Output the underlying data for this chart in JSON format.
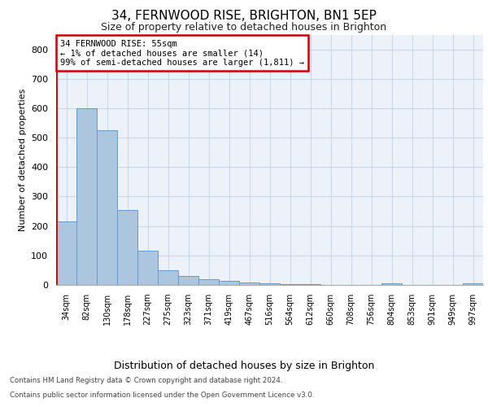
{
  "title1": "34, FERNWOOD RISE, BRIGHTON, BN1 5EP",
  "title2": "Size of property relative to detached houses in Brighton",
  "xlabel": "Distribution of detached houses by size in Brighton",
  "ylabel": "Number of detached properties",
  "bar_color": "#adc6e0",
  "bar_edge_color": "#6699cc",
  "categories": [
    "34sqm",
    "82sqm",
    "130sqm",
    "178sqm",
    "227sqm",
    "275sqm",
    "323sqm",
    "371sqm",
    "419sqm",
    "467sqm",
    "516sqm",
    "564sqm",
    "612sqm",
    "660sqm",
    "708sqm",
    "756sqm",
    "804sqm",
    "853sqm",
    "901sqm",
    "949sqm",
    "997sqm"
  ],
  "values": [
    215,
    600,
    525,
    255,
    115,
    50,
    30,
    20,
    15,
    7,
    5,
    3,
    2,
    1,
    1,
    1,
    5,
    1,
    1,
    1,
    5
  ],
  "ylim": [
    0,
    850
  ],
  "yticks": [
    0,
    100,
    200,
    300,
    400,
    500,
    600,
    700,
    800
  ],
  "annotation_text": "34 FERNWOOD RISE: 55sqm\n← 1% of detached houses are smaller (14)\n99% of semi-detached houses are larger (1,811) →",
  "annotation_box_color": "#ffffff",
  "annotation_box_edge_color": "#cc0000",
  "vline_color": "#cc0000",
  "grid_color": "#c8d8ec",
  "footnote1": "Contains HM Land Registry data © Crown copyright and database right 2024.",
  "footnote2": "Contains public sector information licensed under the Open Government Licence v3.0.",
  "bg_color": "#edf2f9"
}
